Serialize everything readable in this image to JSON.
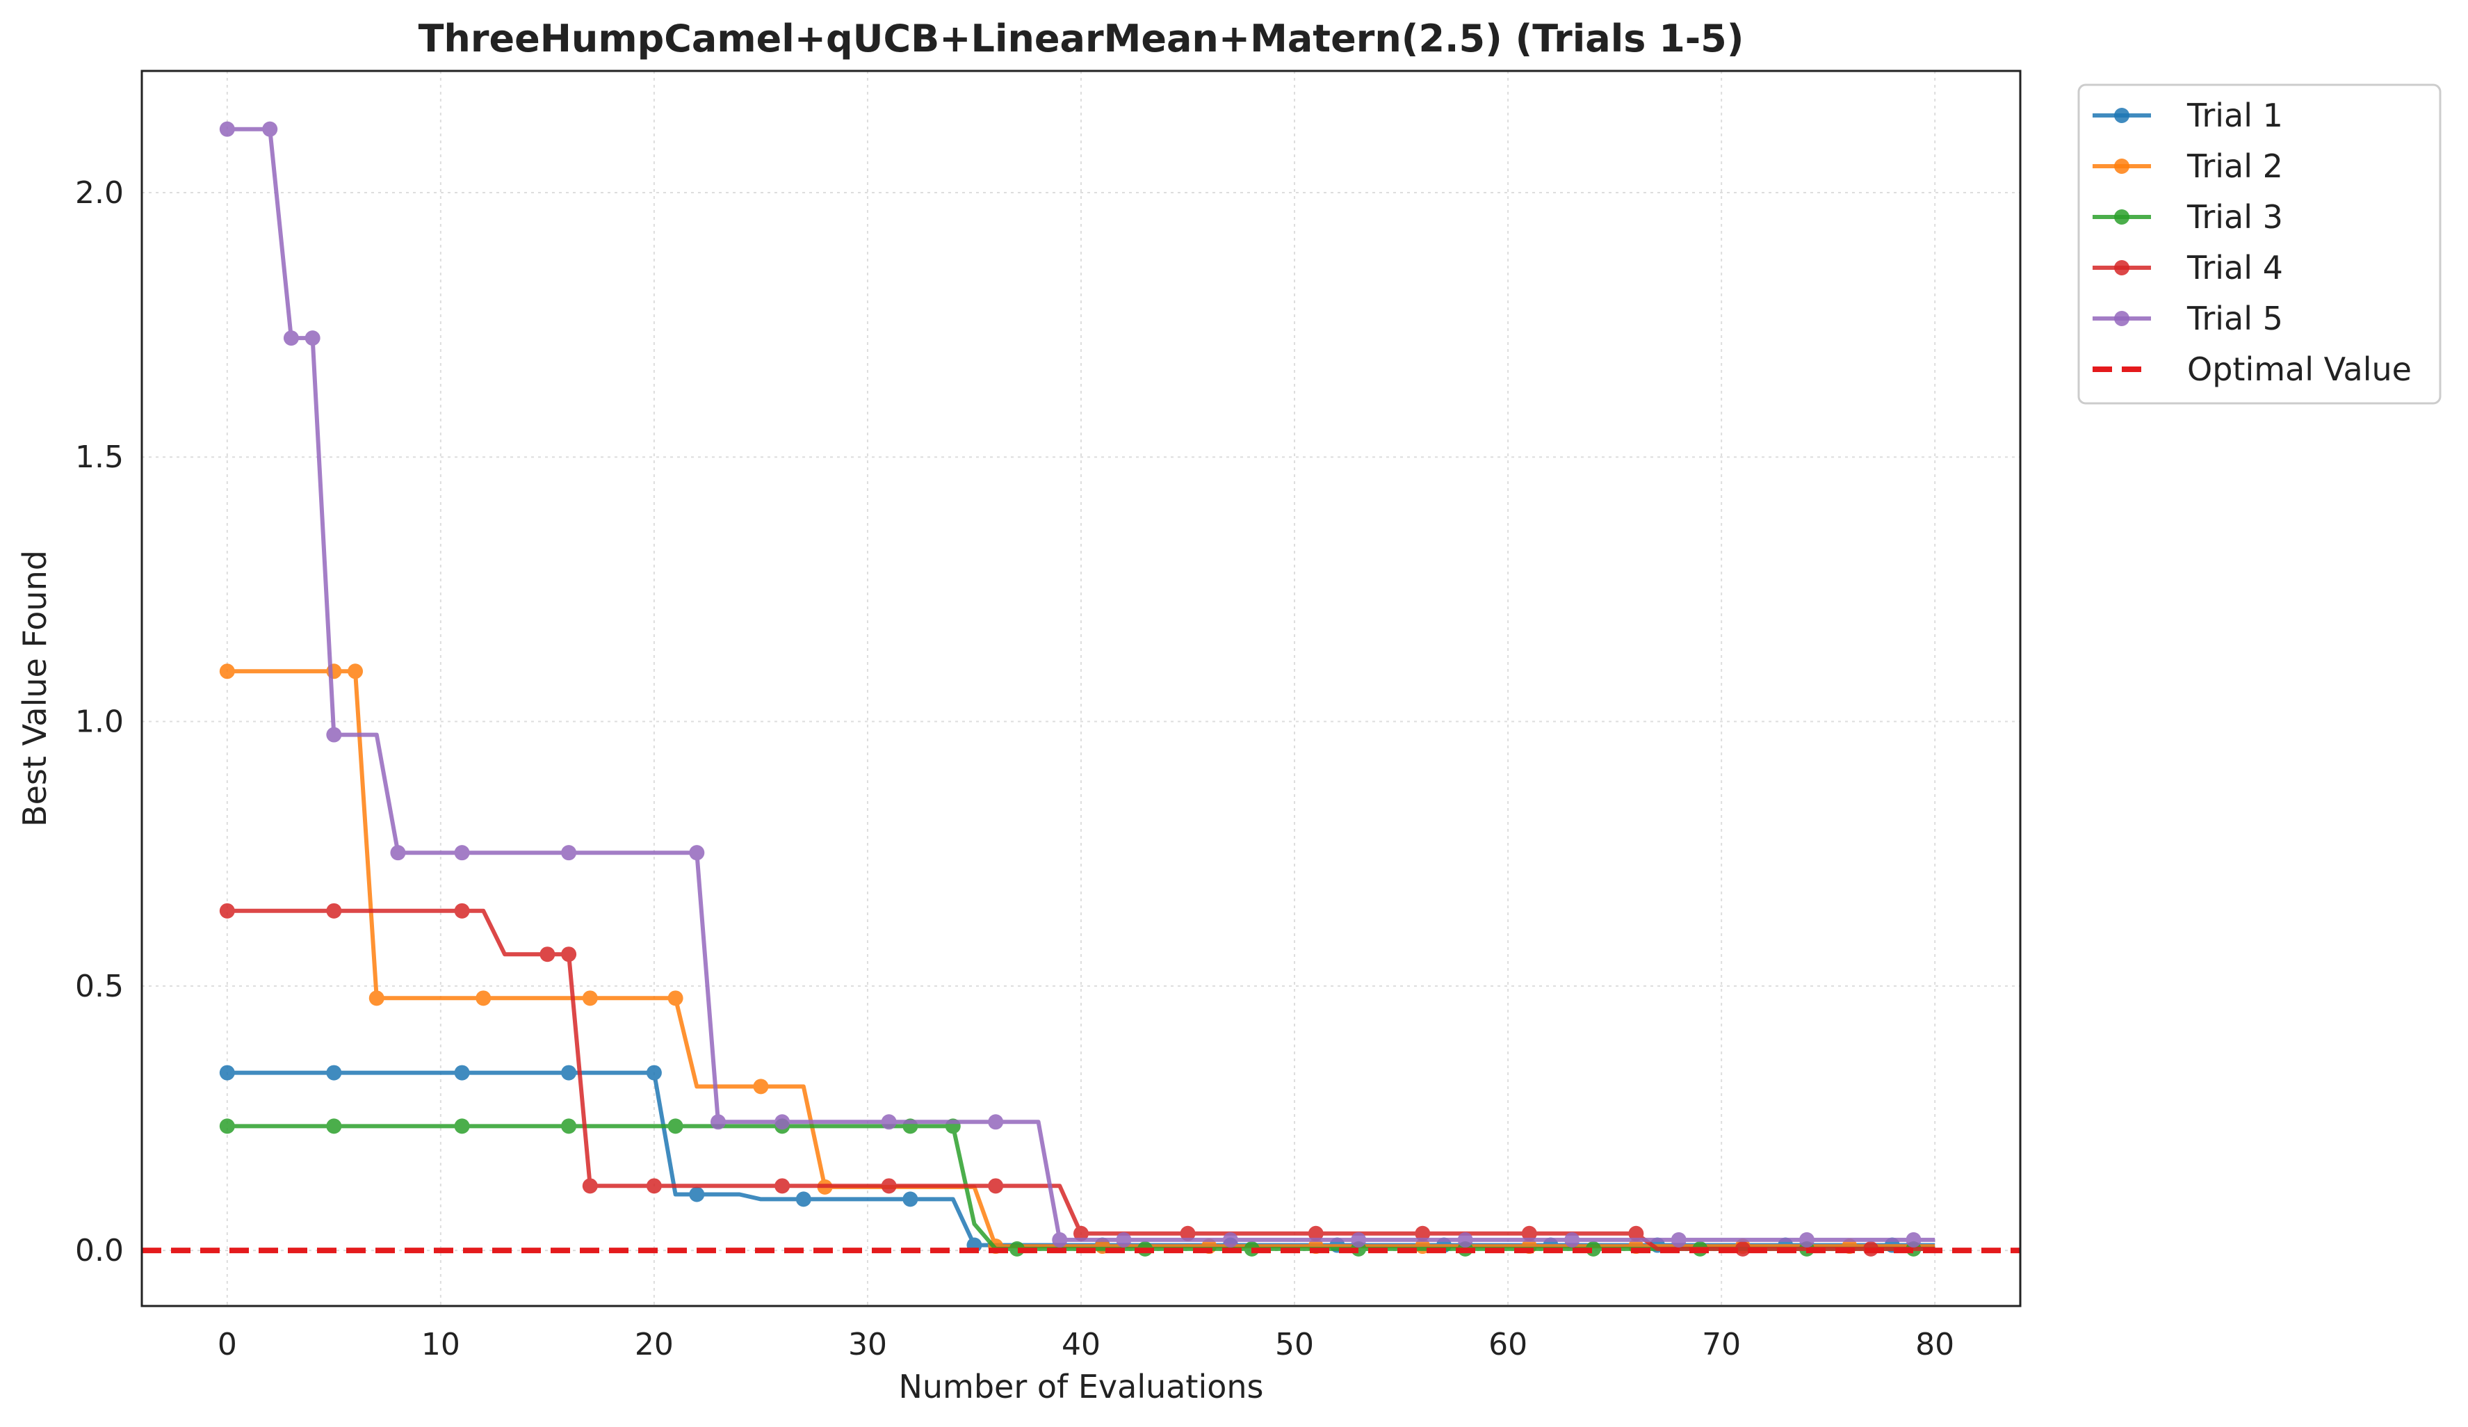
{
  "chart_data": {
    "type": "line",
    "title": "ThreeHumpCamel+qUCB+LinearMean+Matern(2.5) (Trials 1-5)",
    "xlabel": "Number of Evaluations",
    "ylabel": "Best Value Found",
    "xlim": [
      -4,
      84
    ],
    "ylim": [
      -0.105,
      2.23
    ],
    "xticks": [
      0,
      10,
      20,
      30,
      40,
      50,
      60,
      70,
      80
    ],
    "yticks": [
      0.0,
      0.5,
      1.0,
      1.5,
      2.0
    ],
    "ytick_labels": [
      "0.0",
      "0.5",
      "1.0",
      "1.5",
      "2.0"
    ],
    "grid": true,
    "legend_position": "outside upper right",
    "optimal_value": 0,
    "optimal_label": "Optimal Value",
    "optimal_color": "#e41a1c",
    "series": [
      {
        "name": "Trial 1",
        "color": "#1f77b4",
        "points": [
          [
            0,
            0.336
          ],
          [
            5,
            0.336
          ],
          [
            11,
            0.336
          ],
          [
            16,
            0.336
          ],
          [
            20,
            0.336
          ],
          [
            21,
            0.106
          ],
          [
            22,
            0.106
          ],
          [
            24,
            0.106
          ],
          [
            25,
            0.097
          ],
          [
            27,
            0.097
          ],
          [
            32,
            0.097
          ],
          [
            34,
            0.097
          ],
          [
            35,
            0.01
          ],
          [
            40,
            0.01
          ],
          [
            45,
            0.01
          ],
          [
            50,
            0.01
          ],
          [
            55,
            0.01
          ],
          [
            60,
            0.01
          ],
          [
            65,
            0.01
          ],
          [
            70,
            0.01
          ],
          [
            75,
            0.01
          ],
          [
            80,
            0.01
          ]
        ],
        "markers": [
          [
            0,
            0.336
          ],
          [
            5,
            0.336
          ],
          [
            11,
            0.336
          ],
          [
            16,
            0.336
          ],
          [
            20,
            0.336
          ],
          [
            22,
            0.106
          ],
          [
            27,
            0.097
          ],
          [
            32,
            0.097
          ],
          [
            35,
            0.01
          ],
          [
            41,
            0.01
          ],
          [
            47,
            0.01
          ],
          [
            52,
            0.01
          ],
          [
            57,
            0.01
          ],
          [
            62,
            0.01
          ],
          [
            67,
            0.01
          ],
          [
            73,
            0.01
          ],
          [
            78,
            0.01
          ]
        ]
      },
      {
        "name": "Trial 2",
        "color": "#ff7f0e",
        "points": [
          [
            0,
            1.095
          ],
          [
            5,
            1.095
          ],
          [
            6,
            1.095
          ],
          [
            7,
            0.477
          ],
          [
            12,
            0.477
          ],
          [
            17,
            0.477
          ],
          [
            21,
            0.477
          ],
          [
            22,
            0.31
          ],
          [
            25,
            0.31
          ],
          [
            27,
            0.31
          ],
          [
            28,
            0.12
          ],
          [
            32,
            0.12
          ],
          [
            35,
            0.12
          ],
          [
            36,
            0.008
          ],
          [
            40,
            0.008
          ],
          [
            50,
            0.008
          ],
          [
            60,
            0.008
          ],
          [
            70,
            0.008
          ],
          [
            80,
            0.008
          ]
        ],
        "markers": [
          [
            0,
            1.095
          ],
          [
            5,
            1.095
          ],
          [
            6,
            1.095
          ],
          [
            7,
            0.477
          ],
          [
            12,
            0.477
          ],
          [
            17,
            0.477
          ],
          [
            21,
            0.477
          ],
          [
            25,
            0.31
          ],
          [
            28,
            0.12
          ],
          [
            36,
            0.008
          ],
          [
            41,
            0.008
          ],
          [
            46,
            0.008
          ],
          [
            51,
            0.008
          ],
          [
            56,
            0.008
          ],
          [
            61,
            0.008
          ],
          [
            66,
            0.008
          ],
          [
            71,
            0.008
          ],
          [
            76,
            0.008
          ]
        ]
      },
      {
        "name": "Trial 3",
        "color": "#2ca02c",
        "points": [
          [
            0,
            0.235
          ],
          [
            5,
            0.235
          ],
          [
            11,
            0.235
          ],
          [
            16,
            0.235
          ],
          [
            21,
            0.235
          ],
          [
            26,
            0.235
          ],
          [
            32,
            0.235
          ],
          [
            34,
            0.235
          ],
          [
            35,
            0.05
          ],
          [
            36,
            0.003
          ],
          [
            40,
            0.003
          ],
          [
            50,
            0.003
          ],
          [
            60,
            0.003
          ],
          [
            70,
            0.003
          ],
          [
            80,
            0.003
          ]
        ],
        "markers": [
          [
            0,
            0.235
          ],
          [
            5,
            0.235
          ],
          [
            11,
            0.235
          ],
          [
            16,
            0.235
          ],
          [
            21,
            0.235
          ],
          [
            26,
            0.235
          ],
          [
            32,
            0.235
          ],
          [
            34,
            0.235
          ],
          [
            37,
            0.003
          ],
          [
            43,
            0.003
          ],
          [
            48,
            0.003
          ],
          [
            53,
            0.003
          ],
          [
            58,
            0.003
          ],
          [
            64,
            0.003
          ],
          [
            69,
            0.003
          ],
          [
            74,
            0.003
          ],
          [
            79,
            0.003
          ]
        ]
      },
      {
        "name": "Trial 4",
        "color": "#d62728",
        "points": [
          [
            0,
            0.642
          ],
          [
            5,
            0.642
          ],
          [
            11,
            0.642
          ],
          [
            12,
            0.642
          ],
          [
            13,
            0.56
          ],
          [
            15,
            0.56
          ],
          [
            16,
            0.56
          ],
          [
            17,
            0.122
          ],
          [
            20,
            0.122
          ],
          [
            26,
            0.122
          ],
          [
            31,
            0.122
          ],
          [
            36,
            0.122
          ],
          [
            39,
            0.122
          ],
          [
            40,
            0.032
          ],
          [
            45,
            0.032
          ],
          [
            51,
            0.032
          ],
          [
            56,
            0.032
          ],
          [
            61,
            0.032
          ],
          [
            66,
            0.032
          ],
          [
            67,
            0.003
          ],
          [
            71,
            0.003
          ],
          [
            77,
            0.003
          ],
          [
            80,
            0.003
          ]
        ],
        "markers": [
          [
            0,
            0.642
          ],
          [
            5,
            0.642
          ],
          [
            11,
            0.642
          ],
          [
            15,
            0.56
          ],
          [
            16,
            0.56
          ],
          [
            17,
            0.122
          ],
          [
            20,
            0.122
          ],
          [
            26,
            0.122
          ],
          [
            31,
            0.122
          ],
          [
            36,
            0.122
          ],
          [
            40,
            0.032
          ],
          [
            45,
            0.032
          ],
          [
            51,
            0.032
          ],
          [
            56,
            0.032
          ],
          [
            61,
            0.032
          ],
          [
            66,
            0.032
          ],
          [
            71,
            0.003
          ],
          [
            77,
            0.003
          ]
        ]
      },
      {
        "name": "Trial 5",
        "color": "#9467bd",
        "points": [
          [
            0,
            2.12
          ],
          [
            2,
            2.12
          ],
          [
            3,
            1.725
          ],
          [
            4,
            1.725
          ],
          [
            5,
            0.975
          ],
          [
            7,
            0.975
          ],
          [
            8,
            0.752
          ],
          [
            11,
            0.752
          ],
          [
            16,
            0.752
          ],
          [
            22,
            0.752
          ],
          [
            23,
            0.243
          ],
          [
            26,
            0.243
          ],
          [
            31,
            0.243
          ],
          [
            36,
            0.243
          ],
          [
            38,
            0.243
          ],
          [
            39,
            0.02
          ],
          [
            42,
            0.02
          ],
          [
            47,
            0.02
          ],
          [
            53,
            0.02
          ],
          [
            58,
            0.02
          ],
          [
            63,
            0.02
          ],
          [
            68,
            0.02
          ],
          [
            74,
            0.02
          ],
          [
            79,
            0.02
          ],
          [
            80,
            0.02
          ]
        ],
        "markers": [
          [
            0,
            2.12
          ],
          [
            2,
            2.12
          ],
          [
            3,
            1.725
          ],
          [
            4,
            1.725
          ],
          [
            5,
            0.975
          ],
          [
            8,
            0.752
          ],
          [
            11,
            0.752
          ],
          [
            16,
            0.752
          ],
          [
            22,
            0.752
          ],
          [
            23,
            0.243
          ],
          [
            26,
            0.243
          ],
          [
            31,
            0.243
          ],
          [
            36,
            0.243
          ],
          [
            39,
            0.02
          ],
          [
            42,
            0.02
          ],
          [
            47,
            0.02
          ],
          [
            53,
            0.02
          ],
          [
            58,
            0.02
          ],
          [
            63,
            0.02
          ],
          [
            68,
            0.02
          ],
          [
            74,
            0.02
          ],
          [
            79,
            0.02
          ]
        ]
      }
    ]
  }
}
